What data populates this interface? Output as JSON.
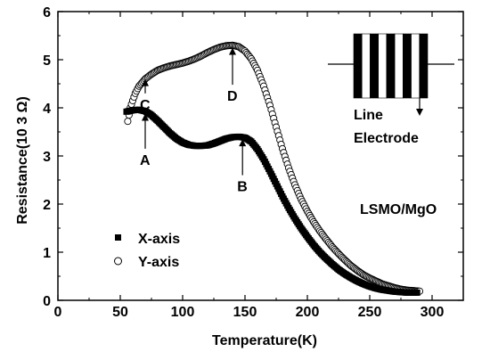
{
  "chart_data": {
    "type": "scatter",
    "xlabel": "Temperature(K)",
    "ylabel": "Resistance(10 3 Ω)",
    "xlim": [
      0,
      325
    ],
    "ylim": [
      0,
      6
    ],
    "xticks": [
      0,
      50,
      100,
      150,
      200,
      250,
      300
    ],
    "yticks": [
      0,
      1,
      2,
      3,
      4,
      5,
      6
    ],
    "grid": false,
    "legend": "bottom-left",
    "series": [
      {
        "name": "X-axis",
        "marker": "filled-square",
        "color": "#000000",
        "points": [
          [
            55,
            3.92
          ],
          [
            60,
            3.95
          ],
          [
            65,
            3.96
          ],
          [
            70,
            3.93
          ],
          [
            75,
            3.85
          ],
          [
            80,
            3.73
          ],
          [
            85,
            3.6
          ],
          [
            90,
            3.47
          ],
          [
            95,
            3.36
          ],
          [
            100,
            3.28
          ],
          [
            105,
            3.23
          ],
          [
            110,
            3.21
          ],
          [
            115,
            3.21
          ],
          [
            120,
            3.22
          ],
          [
            125,
            3.26
          ],
          [
            130,
            3.31
          ],
          [
            135,
            3.36
          ],
          [
            140,
            3.39
          ],
          [
            145,
            3.4
          ],
          [
            150,
            3.38
          ],
          [
            155,
            3.3
          ],
          [
            160,
            3.14
          ],
          [
            165,
            2.93
          ],
          [
            170,
            2.68
          ],
          [
            175,
            2.42
          ],
          [
            180,
            2.16
          ],
          [
            185,
            1.92
          ],
          [
            190,
            1.7
          ],
          [
            195,
            1.5
          ],
          [
            200,
            1.32
          ],
          [
            205,
            1.15
          ],
          [
            210,
            1.0
          ],
          [
            215,
            0.87
          ],
          [
            220,
            0.75
          ],
          [
            225,
            0.64
          ],
          [
            230,
            0.55
          ],
          [
            235,
            0.47
          ],
          [
            240,
            0.4
          ],
          [
            245,
            0.34
          ],
          [
            250,
            0.29
          ],
          [
            255,
            0.25
          ],
          [
            260,
            0.22
          ],
          [
            265,
            0.2
          ],
          [
            270,
            0.18
          ],
          [
            275,
            0.17
          ],
          [
            280,
            0.16
          ],
          [
            285,
            0.16
          ],
          [
            288,
            0.16
          ]
        ]
      },
      {
        "name": "Y-axis",
        "marker": "open-circle",
        "color": "#000000",
        "points": [
          [
            56,
            3.72
          ],
          [
            57,
            3.85
          ],
          [
            58,
            4.0
          ],
          [
            60,
            4.15
          ],
          [
            62,
            4.3
          ],
          [
            65,
            4.45
          ],
          [
            70,
            4.6
          ],
          [
            75,
            4.7
          ],
          [
            80,
            4.78
          ],
          [
            85,
            4.83
          ],
          [
            90,
            4.87
          ],
          [
            95,
            4.9
          ],
          [
            100,
            4.93
          ],
          [
            105,
            4.97
          ],
          [
            110,
            5.02
          ],
          [
            115,
            5.08
          ],
          [
            120,
            5.15
          ],
          [
            125,
            5.21
          ],
          [
            130,
            5.26
          ],
          [
            135,
            5.29
          ],
          [
            140,
            5.3
          ],
          [
            145,
            5.27
          ],
          [
            150,
            5.18
          ],
          [
            155,
            5.02
          ],
          [
            160,
            4.78
          ],
          [
            165,
            4.45
          ],
          [
            170,
            4.05
          ],
          [
            175,
            3.6
          ],
          [
            180,
            3.15
          ],
          [
            185,
            2.75
          ],
          [
            190,
            2.4
          ],
          [
            195,
            2.1
          ],
          [
            200,
            1.85
          ],
          [
            205,
            1.63
          ],
          [
            210,
            1.44
          ],
          [
            215,
            1.27
          ],
          [
            220,
            1.11
          ],
          [
            225,
            0.97
          ],
          [
            230,
            0.84
          ],
          [
            235,
            0.72
          ],
          [
            240,
            0.62
          ],
          [
            245,
            0.53
          ],
          [
            250,
            0.46
          ],
          [
            255,
            0.4
          ],
          [
            260,
            0.34
          ],
          [
            265,
            0.3
          ],
          [
            270,
            0.26
          ],
          [
            275,
            0.23
          ],
          [
            280,
            0.21
          ],
          [
            285,
            0.2
          ],
          [
            290,
            0.19
          ]
        ]
      }
    ],
    "annotations": [
      {
        "label": "A",
        "x": 70,
        "y_text": 3.15,
        "y_tip": 3.88
      },
      {
        "label": "B",
        "x": 148,
        "y_text": 2.6,
        "y_tip": 3.35
      },
      {
        "label": "C",
        "x": 70,
        "y_text": 4.3,
        "y_tip": 4.6
      },
      {
        "label": "D",
        "x": 140,
        "y_text": 4.48,
        "y_tip": 5.25
      }
    ],
    "inset": {
      "caption_line1": "Line",
      "caption_line2": "Electrode",
      "stripes": 5
    },
    "sample_label": "LSMO/MgO"
  }
}
